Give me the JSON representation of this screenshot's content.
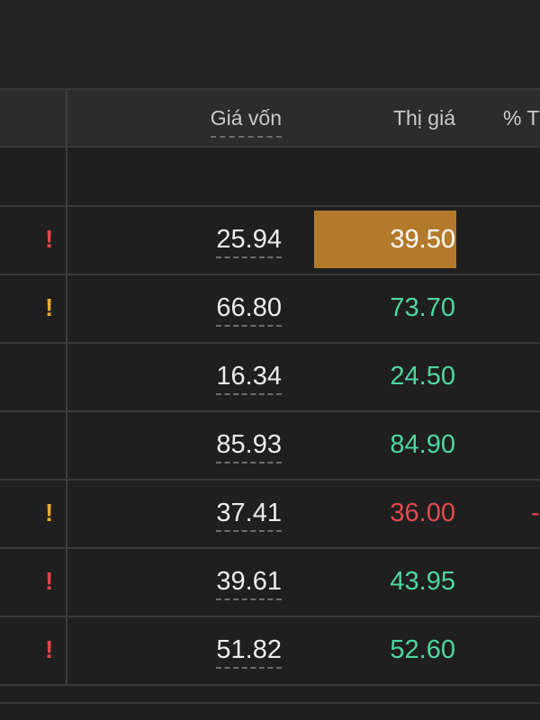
{
  "header": {
    "cost_label": "Giá vốn",
    "market_label": "Thị giá",
    "pct_label": "% T"
  },
  "rows": [
    {
      "warning": "!",
      "warning_color": "#e0454a",
      "cost": "25.94",
      "market": "39.50",
      "market_state": "flash",
      "flash_color": "#b47a2c"
    },
    {
      "warning": "!",
      "warning_color": "#e7a93c",
      "cost": "66.80",
      "market": "73.70",
      "market_state": "up"
    },
    {
      "warning": "",
      "cost": "16.34",
      "market": "24.50",
      "market_state": "up"
    },
    {
      "warning": "",
      "cost": "85.93",
      "market": "84.90",
      "market_state": "up"
    },
    {
      "warning": "!",
      "warning_color": "#e7a93c",
      "cost": "37.41",
      "market": "36.00",
      "market_state": "down",
      "pct": "-"
    },
    {
      "warning": "!",
      "warning_color": "#e0454a",
      "cost": "39.61",
      "market": "43.95",
      "market_state": "up"
    },
    {
      "warning": "!",
      "warning_color": "#e0454a",
      "cost": "51.82",
      "market": "52.60",
      "market_state": "up"
    }
  ],
  "colors": {
    "up": "#4fd6a1",
    "down": "#e24a4f",
    "background": "#1f1f1f"
  }
}
